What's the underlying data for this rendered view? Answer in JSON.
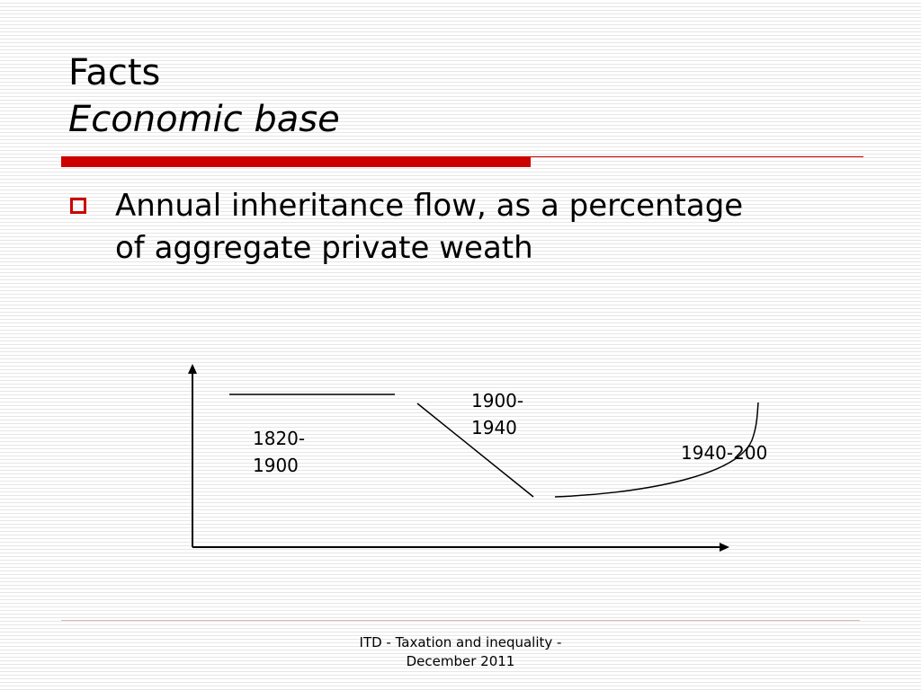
{
  "slide": {
    "title": "Facts",
    "subtitle": "Economic base",
    "bullet": "Annual inheritance flow, as a percentage of aggregate private weath",
    "accent_color": "#cc0000"
  },
  "diagram": {
    "periods": [
      {
        "label_line1": "1820-",
        "label_line2": "1900",
        "trend": "flat high"
      },
      {
        "label_line1": "1900-",
        "label_line2": "1940",
        "trend": "declining"
      },
      {
        "label": "1940-200",
        "trend": "rising curve"
      }
    ]
  },
  "footer": {
    "line1": "ITD - Taxation and inequality -",
    "line2": "December 2011"
  }
}
